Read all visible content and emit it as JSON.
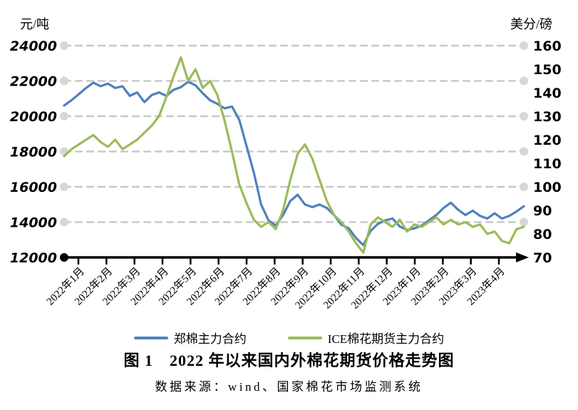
{
  "page": {
    "title": "图 1　2022 年以来国内外棉花期货价格走势图",
    "source": "数据来源：wind、国家棉花市场监测系统"
  },
  "chart_data": {
    "type": "line",
    "title": "图 1　2022 年以来国内外棉花期货价格走势图",
    "left_axis": {
      "unit": "元/吨",
      "min": 12000,
      "max": 24000,
      "ticks": [
        24000,
        22000,
        20000,
        18000,
        16000,
        14000,
        12000
      ]
    },
    "right_axis": {
      "unit": "美分/磅",
      "min": 70,
      "max": 160,
      "ticks": [
        160,
        150,
        140,
        130,
        120,
        110,
        100,
        90,
        80,
        70
      ]
    },
    "x_axis": {
      "labels": [
        "2022年1月",
        "2022年2月",
        "2022年3月",
        "2022年4月",
        "2022年5月",
        "2022年6月",
        "2022年7月",
        "2022年8月",
        "2022年9月",
        "2022年10月",
        "2022年11月",
        "2022年12月",
        "2023年1月",
        "2023年2月",
        "2023年3月",
        "2023年4月"
      ],
      "points_per_month": [
        4,
        4,
        4,
        4,
        4,
        5,
        4,
        4,
        4,
        4,
        4,
        4,
        4,
        4,
        4,
        3
      ]
    },
    "grid": {
      "style": "dashed",
      "color": "#C8C8C8",
      "endpoint_dot_color": "#D7D7D7"
    },
    "legend_position": "bottom",
    "series": [
      {
        "name": "郑棉主力合约",
        "axis": "left",
        "color": "#4F81BD",
        "values": [
          20600,
          20900,
          21250,
          21600,
          21900,
          21700,
          21850,
          21600,
          21700,
          21150,
          21350,
          20800,
          21200,
          21350,
          21150,
          21500,
          21650,
          21950,
          21750,
          21300,
          20900,
          20700,
          20450,
          20550,
          19800,
          18300,
          16800,
          15000,
          14100,
          13800,
          14400,
          15200,
          15550,
          15000,
          14850,
          15000,
          14800,
          14400,
          13850,
          13650,
          13100,
          12700,
          13500,
          13900,
          14100,
          14200,
          13750,
          13550,
          13650,
          13800,
          14100,
          14400,
          14800,
          15100,
          14700,
          14400,
          14650,
          14350,
          14200,
          14500,
          14200,
          14350,
          14600,
          14900
        ]
      },
      {
        "name": "ICE棉花期货主力合约",
        "axis": "right",
        "color": "#9BBB59",
        "values": [
          113,
          116,
          118,
          120,
          122,
          119,
          117,
          120,
          116,
          118,
          120,
          123,
          126,
          130,
          138,
          147,
          155,
          145,
          150,
          142,
          145,
          139,
          128,
          115,
          101,
          93,
          86,
          83,
          85,
          82,
          90,
          103,
          114,
          118,
          112,
          103,
          94,
          88,
          85,
          81,
          76,
          72,
          84,
          87,
          85,
          83,
          86,
          81,
          84,
          83,
          85,
          87,
          84,
          86,
          84,
          85,
          83,
          84,
          80,
          81,
          77,
          76,
          82,
          83
        ]
      }
    ]
  }
}
